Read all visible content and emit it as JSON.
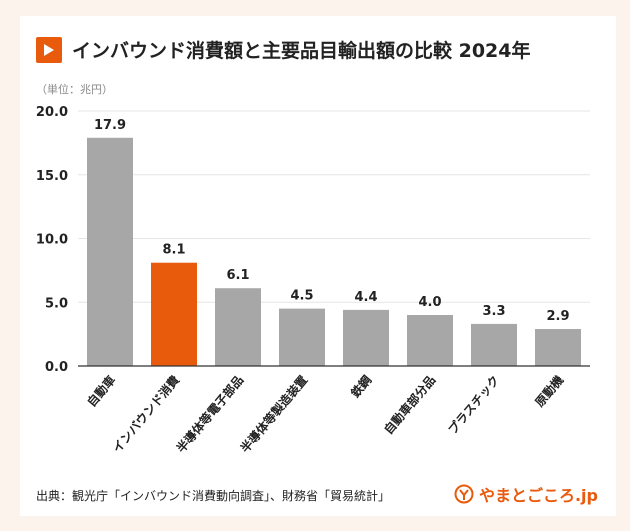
{
  "title": "インバウンド消費額と主要品目輸出額の比較 2024年",
  "unit_label": "（単位：兆円）",
  "source": "出典：観光庁「インバウンド消費動向調査」、財務省「貿易統計」",
  "brand": "やまとごころ.jp",
  "colors": {
    "accent": "#e85a0c",
    "bar": "#a7a7a7",
    "highlight": "#e85a0c"
  },
  "icons": {
    "title": "play-icon",
    "brand": "logo-icon"
  },
  "chart_data": {
    "type": "bar",
    "categories": [
      "自動車",
      "インバウンド消費",
      "半導体等電子部品",
      "半導体等製造装置",
      "鉄鋼",
      "自動車部分品",
      "プラスチック",
      "原動機"
    ],
    "values": [
      17.9,
      8.1,
      6.1,
      4.5,
      4.4,
      4.0,
      3.3,
      2.9
    ],
    "value_labels": [
      "17.9",
      "8.1",
      "6.1",
      "4.5",
      "4.4",
      "4.0",
      "3.3",
      "2.9"
    ],
    "highlight_index": 1,
    "ylim": [
      0,
      20
    ],
    "yticks": [
      "0.0",
      "5.0",
      "10.0",
      "15.0",
      "20.0"
    ],
    "grid": true,
    "legend": "none"
  }
}
